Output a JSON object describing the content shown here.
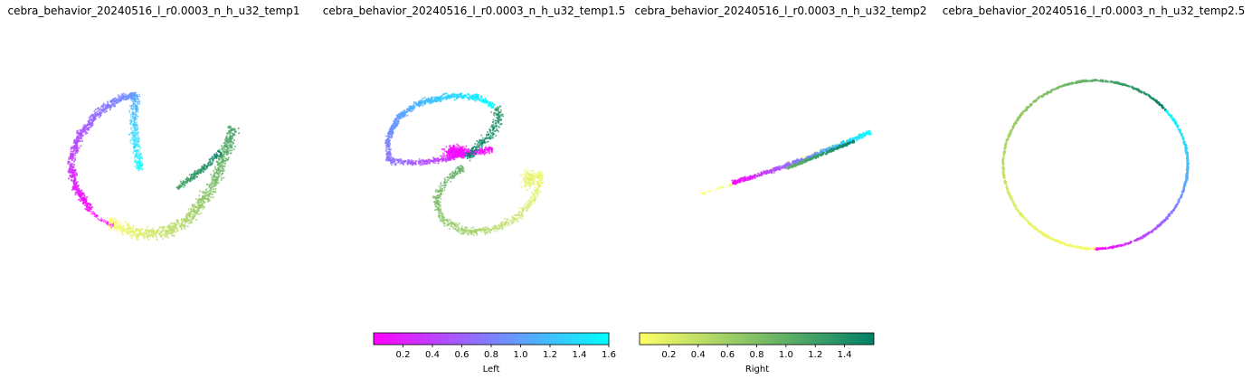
{
  "chart_data": [
    {
      "type": "scatter",
      "title": "cebra_behavior_20240516_l_r0.0003_n_h_u32_temp1",
      "embedding": "3d-scatter-projection",
      "color_groups": [
        "Left",
        "Right"
      ]
    },
    {
      "type": "scatter",
      "title": "cebra_behavior_20240516_l_r0.0003_n_h_u32_temp1.5",
      "embedding": "3d-scatter-projection",
      "color_groups": [
        "Left",
        "Right"
      ]
    },
    {
      "type": "scatter",
      "title": "cebra_behavior_20240516_l_r0.0003_n_h_u32_temp2",
      "embedding": "3d-scatter-projection",
      "color_groups": [
        "Left",
        "Right"
      ]
    },
    {
      "type": "scatter",
      "title": "cebra_behavior_20240516_l_r0.0003_n_h_u32_temp2.5",
      "embedding": "3d-scatter-projection",
      "color_groups": [
        "Left",
        "Right"
      ]
    }
  ],
  "colorbars": [
    {
      "label": "Left",
      "cmap": "cool_r",
      "colors": [
        "#ff00ff",
        "#00ffff"
      ],
      "range": [
        0,
        1.6
      ],
      "ticks": [
        "0.2",
        "0.4",
        "0.6",
        "0.8",
        "1.0",
        "1.2",
        "1.4",
        "1.6"
      ]
    },
    {
      "label": "Right",
      "cmap": "summer_r",
      "colors": [
        "#ffff66",
        "#008066"
      ],
      "range": [
        0,
        1.6
      ],
      "ticks": [
        "0.2",
        "0.4",
        "0.6",
        "0.8",
        "1.0",
        "1.2",
        "1.4"
      ]
    }
  ]
}
